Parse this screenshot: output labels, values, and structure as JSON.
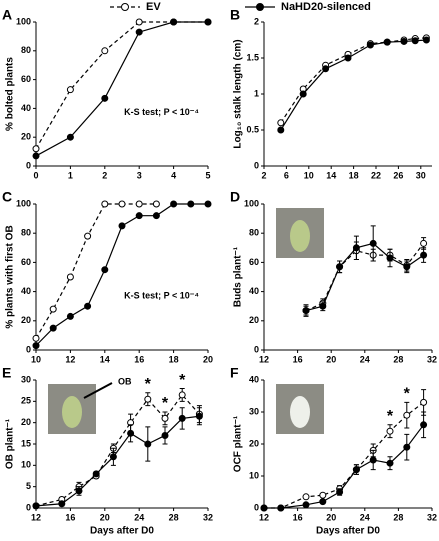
{
  "legend": [
    {
      "name": "EV",
      "style": "dashed",
      "marker": "open"
    },
    {
      "name": "NaHD20-silenced",
      "style": "solid",
      "marker": "filled"
    }
  ],
  "chart_data": [
    {
      "type": "line",
      "label": "A",
      "ylabel": "% bolted plants",
      "x": [
        0,
        1,
        2,
        3,
        4,
        5
      ],
      "xlim": [
        0,
        5
      ],
      "xticks": [
        0,
        1,
        2,
        3,
        4,
        5
      ],
      "ylim": [
        0,
        100
      ],
      "yticks": [
        0,
        20,
        40,
        60,
        80,
        100
      ],
      "series": [
        {
          "values": [
            12,
            53,
            80,
            100,
            100,
            100
          ]
        },
        {
          "values": [
            7,
            20,
            47,
            93,
            100,
            100
          ]
        }
      ],
      "annotation": "K-S test; P < 10⁻⁴"
    },
    {
      "type": "line",
      "label": "B",
      "ylabel": "Log₁₀ stalk length (cm)",
      "x": [
        5,
        9,
        13,
        17,
        21,
        24,
        27,
        29,
        31
      ],
      "xlim": [
        2,
        32
      ],
      "xticks": [
        2,
        6,
        10,
        14,
        18,
        22,
        26,
        30
      ],
      "ylim": [
        0,
        2
      ],
      "yticks": [
        0,
        0.5,
        1,
        1.5,
        2
      ],
      "series": [
        {
          "values": [
            0.6,
            1.07,
            1.4,
            1.55,
            1.7,
            1.72,
            1.75,
            1.77,
            1.78
          ]
        },
        {
          "values": [
            0.5,
            1.0,
            1.35,
            1.5,
            1.68,
            1.72,
            1.73,
            1.74,
            1.75
          ]
        }
      ]
    },
    {
      "type": "line",
      "label": "C",
      "ylabel": "% plants with first OB",
      "x": [
        10,
        11,
        12,
        13,
        14,
        15,
        16,
        17,
        18,
        19,
        20
      ],
      "xlim": [
        10,
        20
      ],
      "xticks": [
        10,
        12,
        14,
        16,
        18,
        20
      ],
      "ylim": [
        0,
        100
      ],
      "yticks": [
        0,
        20,
        40,
        60,
        80,
        100
      ],
      "series": [
        {
          "values": [
            8,
            28,
            50,
            78,
            100,
            100,
            100,
            100,
            null,
            null,
            null
          ]
        },
        {
          "values": [
            3,
            15,
            23,
            30,
            55,
            85,
            92,
            92,
            100,
            100,
            100
          ]
        }
      ],
      "annotation": "K-S test; P < 10⁻⁴"
    },
    {
      "type": "line",
      "label": "D",
      "ylabel": "Buds plant⁻¹",
      "photo": true,
      "x": [
        17,
        19,
        21,
        23,
        25,
        27,
        29,
        31
      ],
      "xlim": [
        12,
        32
      ],
      "xticks": [
        12,
        16,
        20,
        24,
        28,
        32
      ],
      "ylim": [
        0,
        100
      ],
      "yticks": [
        0,
        20,
        40,
        60,
        80,
        100
      ],
      "series": [
        {
          "values": [
            27,
            32,
            57,
            68,
            65,
            65,
            58,
            73
          ],
          "errors": [
            3,
            3,
            4,
            6,
            4,
            4,
            4,
            4
          ]
        },
        {
          "values": [
            27,
            30,
            57,
            70,
            73,
            63,
            57,
            65
          ],
          "errors": [
            4,
            3,
            4,
            8,
            12,
            6,
            4,
            5
          ]
        }
      ]
    },
    {
      "type": "line",
      "label": "E",
      "ylabel": "OB plant⁻¹",
      "xlabel": "Days after D0",
      "photo": true,
      "photo_label": "OB",
      "x": [
        12,
        15,
        17,
        19,
        21,
        23,
        25,
        27,
        29,
        31
      ],
      "xlim": [
        12,
        32
      ],
      "xticks": [
        12,
        16,
        20,
        24,
        28,
        32
      ],
      "ylim": [
        0,
        30
      ],
      "yticks": [
        0,
        5,
        10,
        15,
        20,
        25,
        30
      ],
      "series": [
        {
          "values": [
            0.5,
            2,
            5,
            7.5,
            14,
            20,
            25.5,
            21,
            26.5,
            22
          ],
          "errors": [
            0,
            0.5,
            1,
            0.5,
            1,
            2,
            1.5,
            1.5,
            1.5,
            2
          ]
        },
        {
          "values": [
            0.5,
            1,
            4,
            8,
            12,
            17.5,
            15,
            17,
            21,
            21.5
          ],
          "errors": [
            0,
            0.5,
            1,
            0.5,
            2,
            2,
            4,
            2,
            2.5,
            2
          ]
        }
      ],
      "significance": {
        "text": "*",
        "x": [
          25,
          27,
          29
        ]
      }
    },
    {
      "type": "line",
      "label": "F",
      "ylabel": "OCF plant⁻¹",
      "xlabel": "Days after D0",
      "photo": true,
      "x": [
        12,
        14,
        17,
        19,
        21,
        23,
        25,
        27,
        29,
        31
      ],
      "xlim": [
        12,
        32
      ],
      "xticks": [
        12,
        16,
        20,
        24,
        28,
        32
      ],
      "ylim": [
        0,
        40
      ],
      "yticks": [
        0,
        10,
        20,
        30,
        40
      ],
      "series": [
        {
          "values": [
            0,
            0,
            3.5,
            4,
            6,
            12,
            18,
            24,
            29,
            33
          ],
          "errors": [
            0,
            0,
            0.5,
            0.5,
            1,
            1.5,
            2,
            2,
            4,
            4
          ]
        },
        {
          "values": [
            0,
            0,
            1,
            2,
            5,
            12,
            15,
            14,
            19,
            26
          ],
          "errors": [
            0,
            0,
            0.5,
            0.5,
            1,
            1.5,
            3,
            2,
            4,
            4
          ]
        }
      ],
      "significance": {
        "text": "*",
        "x": [
          27,
          29
        ]
      }
    }
  ]
}
